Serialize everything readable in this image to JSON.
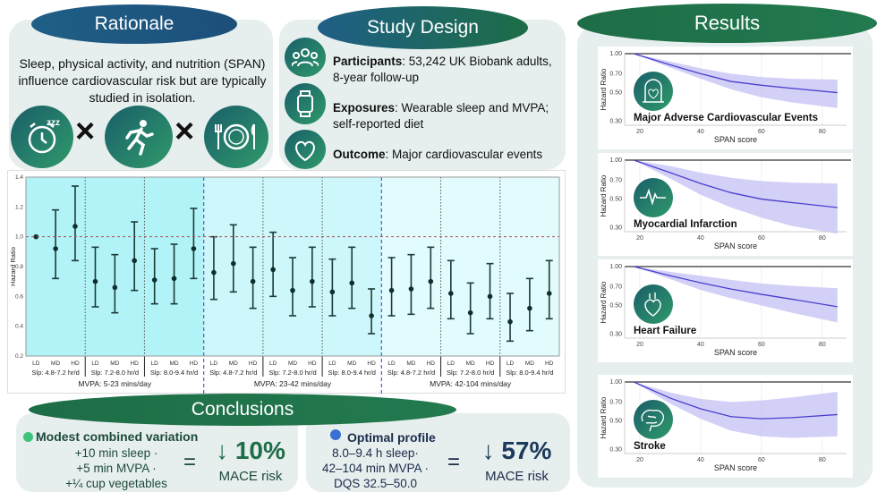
{
  "rationale": {
    "title": "Rationale",
    "text": "Sleep, physical activity, and nutrition (SPAN) influence cardiovascular risk but are typically studied in isolation.",
    "icons": [
      "alarm-clock-icon",
      "running-person-icon",
      "plate-cutlery-icon"
    ],
    "operator": "×"
  },
  "design": {
    "title": "Study Design",
    "items": [
      {
        "icon": "people-icon",
        "label": "Participants",
        "text": ": 53,242 UK Biobank adults, 8-year follow-up"
      },
      {
        "icon": "wearable-watch-icon",
        "label": "Exposures",
        "text": ": Wearable sleep and MVPA; self-reported diet"
      },
      {
        "icon": "heart-icon",
        "label": "Outcome",
        "text": ": Major cardiovascular events"
      }
    ]
  },
  "colors": {
    "green": "#1d6d46",
    "blue": "#1f5f86",
    "ci_band": "#c8c4f5",
    "curve": "#4a3fcf",
    "mvpa1_bg": "#b2f3f7",
    "mvpa2_bg": "#cdf7fa",
    "mvpa3_bg": "#e2fbfc"
  },
  "chart_data": [
    {
      "type": "forest",
      "ylabel": "Hazard Ratio",
      "ylim": [
        0.2,
        1.4
      ],
      "yticks": [
        0.2,
        0.4,
        0.6,
        0.8,
        1.0,
        1.2,
        1.4
      ],
      "reference_line": 1.0,
      "groups": [
        {
          "mvpa": "MVPA: 5-23 mins/day",
          "sleep": [
            {
              "label": "Slp: 4.8-7.2 hr/d",
              "points": [
                {
                  "diet": "LD",
                  "hr": 1.0,
                  "lo": 1.0,
                  "hi": 1.0
                },
                {
                  "diet": "MD",
                  "hr": 0.92,
                  "lo": 0.72,
                  "hi": 1.18
                },
                {
                  "diet": "HD",
                  "hr": 1.07,
                  "lo": 0.84,
                  "hi": 1.34
                }
              ]
            },
            {
              "label": "Slp: 7.2-8.0 hr/d",
              "points": [
                {
                  "diet": "LD",
                  "hr": 0.7,
                  "lo": 0.53,
                  "hi": 0.93
                },
                {
                  "diet": "MD",
                  "hr": 0.66,
                  "lo": 0.49,
                  "hi": 0.88
                },
                {
                  "diet": "HD",
                  "hr": 0.84,
                  "lo": 0.64,
                  "hi": 1.1
                }
              ]
            },
            {
              "label": "Slp: 8.0-9.4 hr/d",
              "points": [
                {
                  "diet": "LD",
                  "hr": 0.71,
                  "lo": 0.55,
                  "hi": 0.92
                },
                {
                  "diet": "MD",
                  "hr": 0.72,
                  "lo": 0.55,
                  "hi": 0.95
                },
                {
                  "diet": "HD",
                  "hr": 0.92,
                  "lo": 0.72,
                  "hi": 1.19
                }
              ]
            }
          ]
        },
        {
          "mvpa": "MVPA: 23-42 mins/day",
          "sleep": [
            {
              "label": "Slp: 4.8-7.2 hr/d",
              "points": [
                {
                  "diet": "LD",
                  "hr": 0.76,
                  "lo": 0.58,
                  "hi": 1.0
                },
                {
                  "diet": "MD",
                  "hr": 0.82,
                  "lo": 0.63,
                  "hi": 1.08
                },
                {
                  "diet": "HD",
                  "hr": 0.7,
                  "lo": 0.52,
                  "hi": 0.93
                }
              ]
            },
            {
              "label": "Slp: 7.2-8.0 hr/d",
              "points": [
                {
                  "diet": "LD",
                  "hr": 0.78,
                  "lo": 0.6,
                  "hi": 1.03
                },
                {
                  "diet": "MD",
                  "hr": 0.64,
                  "lo": 0.47,
                  "hi": 0.86
                },
                {
                  "diet": "HD",
                  "hr": 0.7,
                  "lo": 0.53,
                  "hi": 0.93
                }
              ]
            },
            {
              "label": "Slp: 8.0-9.4 hr/d",
              "points": [
                {
                  "diet": "LD",
                  "hr": 0.63,
                  "lo": 0.47,
                  "hi": 0.85
                },
                {
                  "diet": "MD",
                  "hr": 0.69,
                  "lo": 0.52,
                  "hi": 0.93
                },
                {
                  "diet": "HD",
                  "hr": 0.47,
                  "lo": 0.35,
                  "hi": 0.65
                }
              ]
            }
          ]
        },
        {
          "mvpa": "MVPA: 42-104 mins/day",
          "sleep": [
            {
              "label": "Slp: 4.8-7.2 hr/d",
              "points": [
                {
                  "diet": "LD",
                  "hr": 0.64,
                  "lo": 0.47,
                  "hi": 0.86
                },
                {
                  "diet": "MD",
                  "hr": 0.65,
                  "lo": 0.48,
                  "hi": 0.88
                },
                {
                  "diet": "HD",
                  "hr": 0.7,
                  "lo": 0.52,
                  "hi": 0.93
                }
              ]
            },
            {
              "label": "Slp: 7.2-8.0 hr/d",
              "points": [
                {
                  "diet": "LD",
                  "hr": 0.62,
                  "lo": 0.45,
                  "hi": 0.84
                },
                {
                  "diet": "MD",
                  "hr": 0.49,
                  "lo": 0.35,
                  "hi": 0.69
                },
                {
                  "diet": "HD",
                  "hr": 0.6,
                  "lo": 0.45,
                  "hi": 0.82
                }
              ]
            },
            {
              "label": "Slp: 8.0-9.4 hr/d",
              "points": [
                {
                  "diet": "LD",
                  "hr": 0.43,
                  "lo": 0.3,
                  "hi": 0.62
                },
                {
                  "diet": "MD",
                  "hr": 0.52,
                  "lo": 0.37,
                  "hi": 0.72
                },
                {
                  "diet": "HD",
                  "hr": 0.62,
                  "lo": 0.45,
                  "hi": 0.84
                }
              ]
            }
          ]
        }
      ]
    },
    {
      "type": "line",
      "title": "Major Adverse Cardiovascular Events",
      "icon": "tombstone-heart-icon",
      "xlabel": "SPAN score",
      "ylabel": "Hazard Ratio",
      "yscale": "log",
      "yticks": [
        0.3,
        0.5,
        0.7,
        1.0
      ],
      "xticks": [
        20,
        40,
        60,
        80
      ],
      "x": [
        18,
        30,
        40,
        50,
        60,
        70,
        85
      ],
      "hr": [
        1.0,
        0.82,
        0.7,
        0.61,
        0.57,
        0.54,
        0.5
      ],
      "lo": [
        1.0,
        0.78,
        0.64,
        0.53,
        0.46,
        0.42,
        0.38
      ],
      "hi": [
        1.0,
        0.87,
        0.77,
        0.7,
        0.66,
        0.64,
        0.63
      ]
    },
    {
      "type": "line",
      "title": "Myocardial Infarction",
      "icon": "heartbeat-icon",
      "xlabel": "SPAN score",
      "ylabel": "Hazard Ratio",
      "yscale": "log",
      "yticks": [
        0.3,
        0.5,
        0.7,
        1.0
      ],
      "xticks": [
        20,
        40,
        60,
        80
      ],
      "x": [
        18,
        30,
        40,
        50,
        60,
        70,
        85
      ],
      "hr": [
        1.0,
        0.8,
        0.66,
        0.56,
        0.5,
        0.47,
        0.43
      ],
      "lo": [
        1.0,
        0.72,
        0.54,
        0.43,
        0.36,
        0.31,
        0.27
      ],
      "hi": [
        1.0,
        0.9,
        0.8,
        0.73,
        0.69,
        0.67,
        0.66
      ]
    },
    {
      "type": "line",
      "title": "Heart Failure",
      "icon": "anatomical-heart-icon",
      "xlabel": "SPAN score",
      "ylabel": "Hazard Ratio",
      "yscale": "log",
      "yticks": [
        0.3,
        0.5,
        0.7,
        1.0
      ],
      "xticks": [
        20,
        40,
        60,
        80
      ],
      "x": [
        18,
        30,
        40,
        50,
        60,
        70,
        85
      ],
      "hr": [
        1.0,
        0.85,
        0.75,
        0.67,
        0.61,
        0.56,
        0.49
      ],
      "lo": [
        1.0,
        0.8,
        0.66,
        0.57,
        0.5,
        0.44,
        0.37
      ],
      "hi": [
        1.0,
        0.91,
        0.85,
        0.79,
        0.74,
        0.71,
        0.68
      ]
    },
    {
      "type": "line",
      "title": "Stroke",
      "icon": "brain-icon",
      "xlabel": "SPAN score",
      "ylabel": "Hazard Ratio",
      "yscale": "log",
      "yticks": [
        0.3,
        0.5,
        0.7,
        1.0
      ],
      "xticks": [
        20,
        40,
        60,
        80
      ],
      "x": [
        18,
        30,
        40,
        50,
        60,
        70,
        85
      ],
      "hr": [
        1.0,
        0.75,
        0.62,
        0.54,
        0.52,
        0.53,
        0.56
      ],
      "lo": [
        1.0,
        0.68,
        0.52,
        0.42,
        0.38,
        0.37,
        0.38
      ],
      "hi": [
        1.0,
        0.83,
        0.74,
        0.7,
        0.72,
        0.76,
        0.84
      ]
    }
  ],
  "results": {
    "title": "Results"
  },
  "conclusions": {
    "title": "Conclusions",
    "left": {
      "heading": "Modest combined variation",
      "lines": [
        "+10 min sleep ·",
        "+5 min MVPA ·",
        "+¼ cup vegetables"
      ],
      "equals": "=",
      "value": "↓ 10%",
      "unit": "MACE risk",
      "bullet_color": "#3cc47a"
    },
    "right": {
      "heading": "Optimal profile",
      "lines": [
        "8.0–9.4 h sleep·",
        "42–104 min MVPA ·",
        "DQS 32.5–50.0"
      ],
      "equals": "=",
      "value": "↓ 57%",
      "unit": "MACE risk",
      "bullet_color": "#3b6fd1"
    }
  }
}
